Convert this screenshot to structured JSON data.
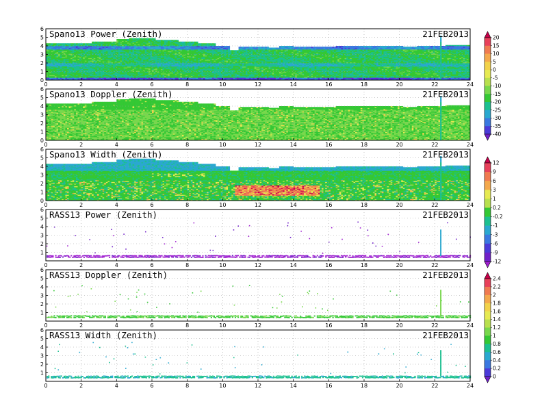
{
  "chart_data": [
    {
      "type": "heatmap",
      "title": "Spano13 Power (Zenith)",
      "date": "21FEB2013",
      "x_ticks": [
        "0",
        "2",
        "4",
        "6",
        "8",
        "10",
        "12",
        "14",
        "16",
        "18",
        "20",
        "22",
        "24"
      ],
      "y_ticks": [
        "0",
        "1",
        "2",
        "3",
        "4",
        "5",
        "6"
      ],
      "xlim": [
        0,
        24
      ],
      "ylim": [
        0,
        6
      ],
      "grid": true,
      "colorbar": "power",
      "field": "spano_power",
      "color_range": [
        -40,
        20
      ]
    },
    {
      "type": "heatmap",
      "title": "Spano13 Doppler (Zenith)",
      "date": "21FEB2013",
      "x_ticks": [
        "0",
        "2",
        "4",
        "6",
        "8",
        "10",
        "12",
        "14",
        "16",
        "18",
        "20",
        "22",
        "24"
      ],
      "y_ticks": [
        "0",
        "1",
        "2",
        "3",
        "4",
        "5",
        "6"
      ],
      "xlim": [
        0,
        24
      ],
      "ylim": [
        0,
        6
      ],
      "grid": true,
      "colorbar": "power",
      "field": "spano_doppler",
      "color_range": [
        -40,
        20
      ]
    },
    {
      "type": "heatmap",
      "title": "Spano13 Width (Zenith)",
      "date": "21FEB2013",
      "x_ticks": [
        "0",
        "2",
        "4",
        "6",
        "8",
        "10",
        "12",
        "14",
        "16",
        "18",
        "20",
        "22",
        "24"
      ],
      "y_ticks": [
        "0",
        "1",
        "2",
        "3",
        "4",
        "5",
        "6"
      ],
      "xlim": [
        0,
        24
      ],
      "ylim": [
        0,
        6
      ],
      "grid": true,
      "colorbar": "width",
      "field": "spano_width",
      "color_range": [
        -12,
        12
      ]
    },
    {
      "type": "heatmap",
      "title": "RASS13 Power (Zenith)",
      "date": "21FEB2013",
      "x_ticks": [
        "0",
        "2",
        "4",
        "6",
        "8",
        "10",
        "12",
        "14",
        "16",
        "18",
        "20",
        "22",
        "24"
      ],
      "y_ticks": [
        "1",
        "2",
        "3",
        "4",
        "5",
        "6"
      ],
      "xlim": [
        0,
        24
      ],
      "ylim": [
        0,
        6
      ],
      "grid": true,
      "colorbar": "width",
      "field": "rass_power",
      "color_range": [
        -12,
        12
      ]
    },
    {
      "type": "heatmap",
      "title": "RASS13 Doppler (Zenith)",
      "date": "21FEB2013",
      "x_ticks": [
        "0",
        "2",
        "4",
        "6",
        "8",
        "10",
        "12",
        "14",
        "16",
        "18",
        "20",
        "22",
        "24"
      ],
      "y_ticks": [
        "1",
        "2",
        "3",
        "4",
        "5",
        "6"
      ],
      "xlim": [
        0,
        24
      ],
      "ylim": [
        0,
        6
      ],
      "grid": true,
      "colorbar": "rass",
      "field": "rass_doppler",
      "color_range": [
        0,
        2.4
      ]
    },
    {
      "type": "heatmap",
      "title": "RASS13 Width (Zenith)",
      "date": "21FEB2013",
      "x_ticks": [
        "0",
        "2",
        "4",
        "6",
        "8",
        "10",
        "12",
        "14",
        "16",
        "18",
        "20",
        "22",
        "24"
      ],
      "y_ticks": [
        "1",
        "2",
        "3",
        "4",
        "5",
        "6"
      ],
      "xlim": [
        0,
        24
      ],
      "ylim": [
        0,
        6
      ],
      "grid": true,
      "colorbar": "rass",
      "field": "rass_width",
      "color_range": [
        0,
        2.4
      ]
    }
  ],
  "colorbars": {
    "power": {
      "labels": [
        "20",
        "15",
        "10",
        "5",
        "0",
        "-5",
        "-10",
        "-15",
        "-20",
        "-25",
        "-30",
        "-35",
        "-40"
      ],
      "colors": [
        "#c8004a",
        "#e8405a",
        "#f07a50",
        "#f4a84c",
        "#f2d24a",
        "#e6ea52",
        "#b8e04e",
        "#78d84c",
        "#34c834",
        "#1cc090",
        "#2aa8d0",
        "#3a78e0",
        "#4a3ad8",
        "#7020c8"
      ]
    },
    "width": {
      "labels": [
        "12",
        "9",
        "6",
        "3",
        "1",
        "0.2",
        "-0.2",
        "-1",
        "-3",
        "-6",
        "-9",
        "-12"
      ],
      "colors": [
        "#c8004a",
        "#e8405a",
        "#f07a50",
        "#f4a84c",
        "#e6ea52",
        "#b8e04e",
        "#34c834",
        "#1cc090",
        "#2aa8d0",
        "#3a78e0",
        "#4a3ad8",
        "#7020c8",
        "#a020d0"
      ]
    },
    "rass": {
      "labels": [
        "2.4",
        "2.2",
        "2",
        "1.8",
        "1.6",
        "1.4",
        "1.2",
        "1",
        "0.8",
        "0.6",
        "0.4",
        "0.2",
        "0"
      ],
      "colors": [
        "#c8004a",
        "#e8405a",
        "#f07a50",
        "#f4a84c",
        "#f2d24a",
        "#e6ea52",
        "#b8e04e",
        "#78d84c",
        "#34c834",
        "#1cc090",
        "#2aa8d0",
        "#3a78e0",
        "#4a3ad8",
        "#7020c8"
      ]
    }
  }
}
